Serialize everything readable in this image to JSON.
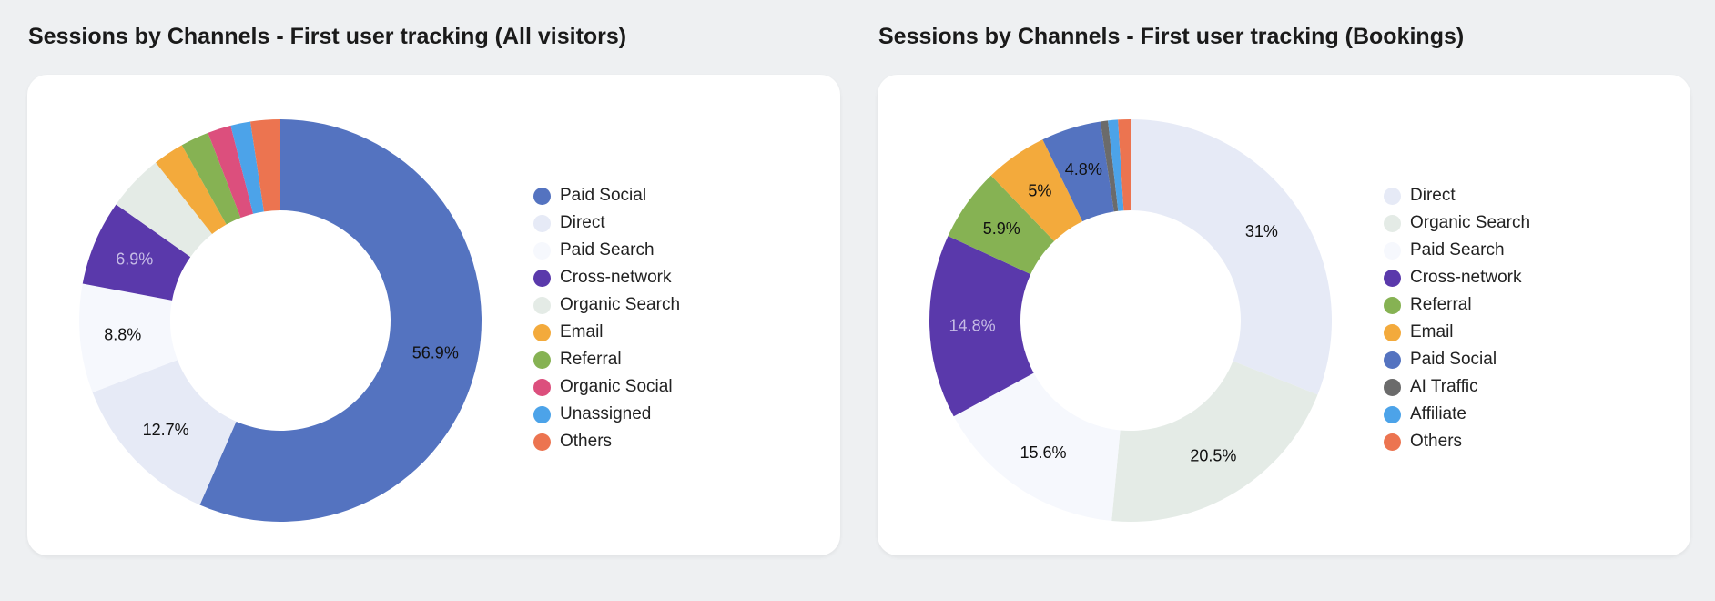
{
  "chart_data": [
    {
      "type": "pie",
      "title": "Sessions by Channels - First user tracking (All visitors)",
      "slices": [
        {
          "label": "Paid Social",
          "value": 56.9,
          "color": "#5473c0",
          "text": "56.9%",
          "label_color": "#111111"
        },
        {
          "label": "Direct",
          "value": 12.7,
          "color": "#e6eaf6",
          "text": "12.7%",
          "label_color": "#111111"
        },
        {
          "label": "Paid Search",
          "value": 8.8,
          "color": "#f6f8fd",
          "text": "8.8%",
          "label_color": "#111111"
        },
        {
          "label": "Cross-network",
          "value": 6.9,
          "color": "#5a39ab",
          "text": "6.9%",
          "label_color": "#c7bde6"
        },
        {
          "label": "Organic Search",
          "value": 4.6,
          "color": "#e4ebe6",
          "text": "",
          "label_color": "#111111"
        },
        {
          "label": "Email",
          "value": 2.5,
          "color": "#f3aa3c",
          "text": "",
          "label_color": "#111111"
        },
        {
          "label": "Referral",
          "value": 2.3,
          "color": "#86b253",
          "text": "",
          "label_color": "#111111"
        },
        {
          "label": "Organic Social",
          "value": 1.9,
          "color": "#dc4f7d",
          "text": "",
          "label_color": "#111111"
        },
        {
          "label": "Unassigned",
          "value": 1.6,
          "color": "#4ca3e9",
          "text": "",
          "label_color": "#111111"
        },
        {
          "label": "Others",
          "value": 2.4,
          "color": "#ec7450",
          "text": "",
          "label_color": "#111111"
        }
      ],
      "legend": [
        {
          "label": "Paid Social",
          "color": "#5473c0"
        },
        {
          "label": "Direct",
          "color": "#e6eaf6"
        },
        {
          "label": "Paid Search",
          "color": "#f6f8fd"
        },
        {
          "label": "Cross-network",
          "color": "#5a39ab"
        },
        {
          "label": "Organic Search",
          "color": "#e4ebe6"
        },
        {
          "label": "Email",
          "color": "#f3aa3c"
        },
        {
          "label": "Referral",
          "color": "#86b253"
        },
        {
          "label": "Organic Social",
          "color": "#dc4f7d"
        },
        {
          "label": "Unassigned",
          "color": "#4ca3e9"
        },
        {
          "label": "Others",
          "color": "#ec7450"
        }
      ],
      "legend_placement": "right"
    },
    {
      "type": "pie",
      "title": "Sessions by Channels - First user tracking (Bookings)",
      "slices": [
        {
          "label": "Direct",
          "value": 31,
          "color": "#e6eaf6",
          "text": "31%",
          "label_color": "#111111"
        },
        {
          "label": "Organic Search",
          "value": 20.5,
          "color": "#e4ebe6",
          "text": "20.5%",
          "label_color": "#111111"
        },
        {
          "label": "Paid Search",
          "value": 15.6,
          "color": "#f6f8fd",
          "text": "15.6%",
          "label_color": "#111111"
        },
        {
          "label": "Cross-network",
          "value": 14.8,
          "color": "#5a39ab",
          "text": "14.8%",
          "label_color": "#c7bde6"
        },
        {
          "label": "Referral",
          "value": 5.9,
          "color": "#86b253",
          "text": "5.9%",
          "label_color": "#111111"
        },
        {
          "label": "Email",
          "value": 5,
          "color": "#f3aa3c",
          "text": "5%",
          "label_color": "#111111"
        },
        {
          "label": "Paid Social",
          "value": 4.8,
          "color": "#5473c0",
          "text": "4.8%",
          "label_color": "#111111"
        },
        {
          "label": "AI Traffic",
          "value": 0.6,
          "color": "#6b6b6b",
          "text": "",
          "label_color": "#111111"
        },
        {
          "label": "Affiliate",
          "value": 0.8,
          "color": "#4ca3e9",
          "text": "",
          "label_color": "#111111"
        },
        {
          "label": "Others",
          "value": 1.0,
          "color": "#ec7450",
          "text": "",
          "label_color": "#111111"
        }
      ],
      "legend": [
        {
          "label": "Direct",
          "color": "#e6eaf6"
        },
        {
          "label": "Organic Search",
          "color": "#e4ebe6"
        },
        {
          "label": "Paid Search",
          "color": "#f6f8fd"
        },
        {
          "label": "Cross-network",
          "color": "#5a39ab"
        },
        {
          "label": "Referral",
          "color": "#86b253"
        },
        {
          "label": "Email",
          "color": "#f3aa3c"
        },
        {
          "label": "Paid Social",
          "color": "#5473c0"
        },
        {
          "label": "AI Traffic",
          "color": "#6b6b6b"
        },
        {
          "label": "Affiliate",
          "color": "#4ca3e9"
        },
        {
          "label": "Others",
          "color": "#ec7450"
        }
      ],
      "legend_placement": "right"
    }
  ]
}
